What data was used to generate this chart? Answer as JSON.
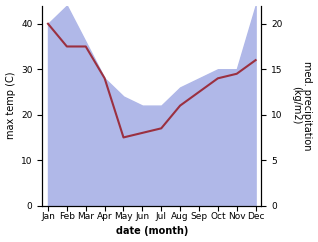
{
  "months": [
    "Jan",
    "Feb",
    "Mar",
    "Apr",
    "May",
    "Jun",
    "Jul",
    "Aug",
    "Sep",
    "Oct",
    "Nov",
    "Dec"
  ],
  "x": [
    0,
    1,
    2,
    3,
    4,
    5,
    6,
    7,
    8,
    9,
    10,
    11
  ],
  "temp_max": [
    40,
    35,
    35,
    28,
    15,
    16,
    17,
    22,
    25,
    28,
    29,
    32
  ],
  "precip": [
    20,
    22,
    18,
    14,
    12,
    11,
    11,
    13,
    14,
    15,
    15,
    22
  ],
  "temp_color": "#9b3040",
  "precip_fill_color": "#b0b8e8",
  "temp_ylim": [
    0,
    44
  ],
  "precip_ylim": [
    0,
    22
  ],
  "temp_yticks": [
    0,
    10,
    20,
    30,
    40
  ],
  "precip_yticks": [
    0,
    5,
    10,
    15,
    20
  ],
  "ylabel_left": "max temp (C)",
  "ylabel_right": "med. precipitation\n(kg/m2)",
  "xlabel": "date (month)",
  "fig_width": 3.18,
  "fig_height": 2.42,
  "dpi": 100,
  "temp_linewidth": 1.5,
  "label_fontsize": 7,
  "tick_fontsize": 6.5
}
